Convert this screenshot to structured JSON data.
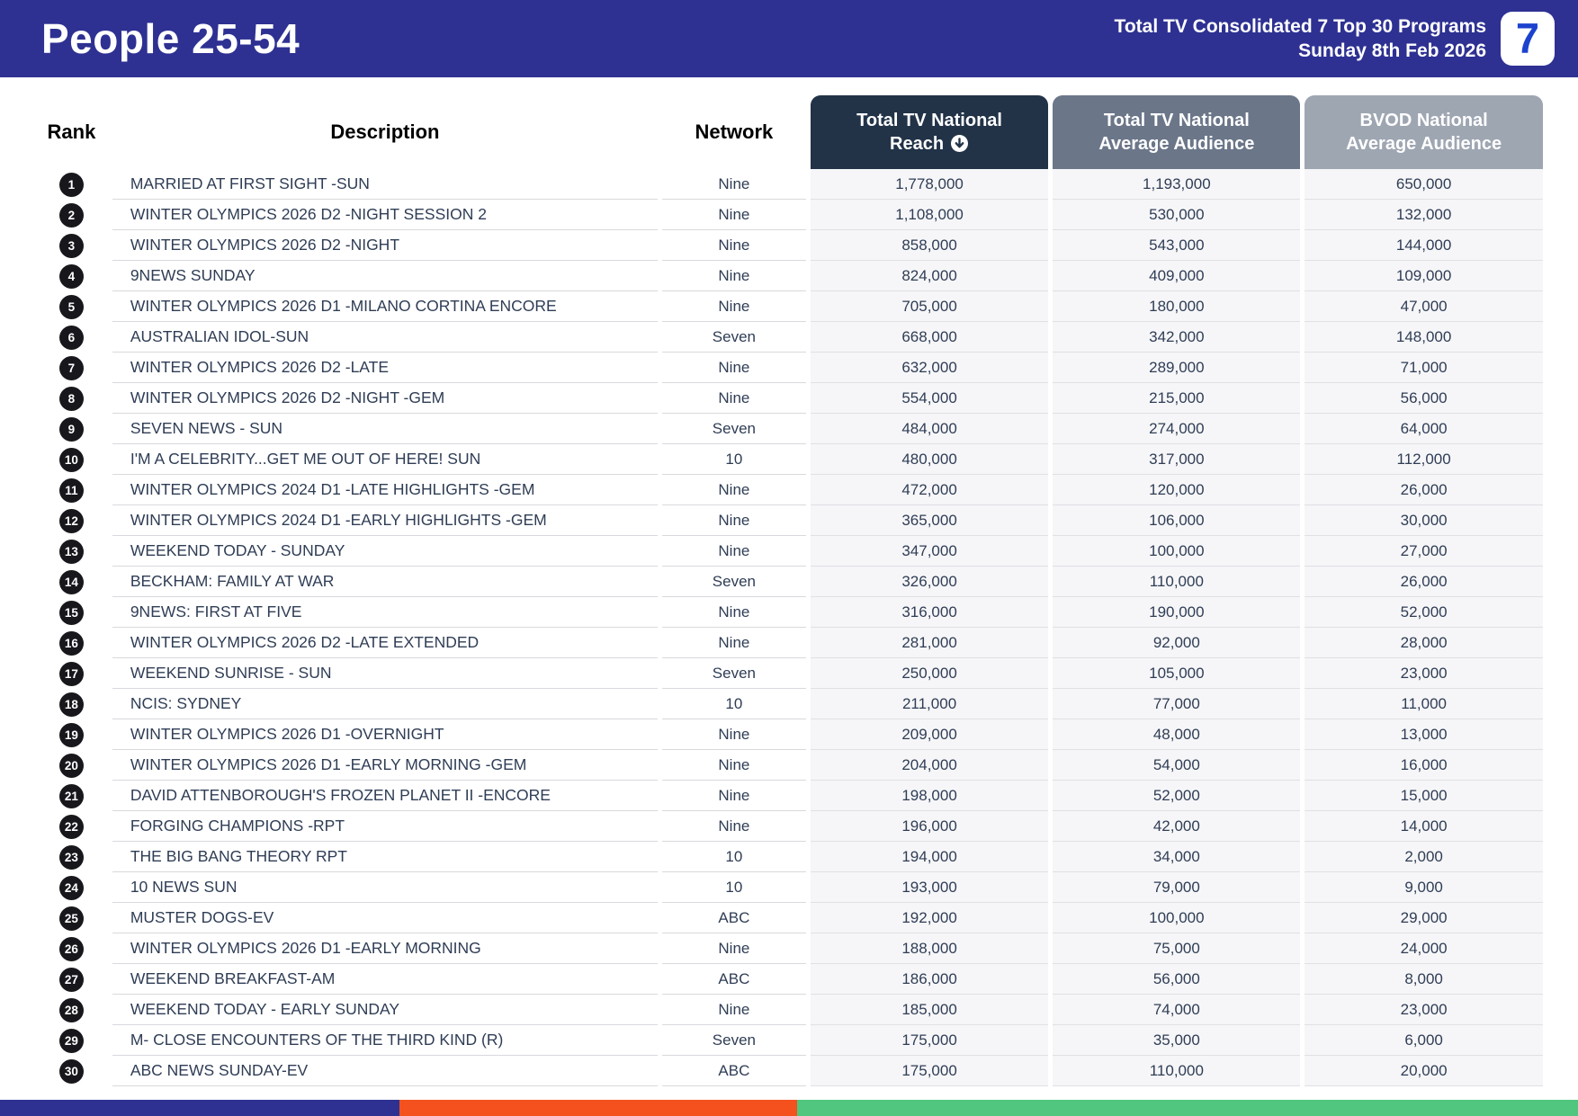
{
  "header": {
    "title": "People 25-54",
    "subtitle_line1": "Total TV Consolidated 7 Top 30 Programs",
    "subtitle_line2": "Sunday 8th Feb 2026",
    "logo_text": "7",
    "bg_color": "#2E3192",
    "logo_color": "#1C43CE"
  },
  "table": {
    "columns": {
      "rank": "Rank",
      "description": "Description",
      "network": "Network",
      "reach": {
        "line1": "Total TV National",
        "line2": "Reach"
      },
      "avg_audience": {
        "line1": "Total TV National",
        "line2": "Average Audience"
      },
      "bvod_audience": {
        "line1": "BVOD National",
        "line2": "Average Audience"
      }
    },
    "sort": {
      "column": "reach",
      "direction": "descending",
      "icon": "circle-arrow-down"
    },
    "header_colors": {
      "reach": "#223348",
      "avg_audience": "#6B7689",
      "bvod_audience": "#9EA6B2"
    },
    "rows": [
      {
        "rank": "1",
        "description": "MARRIED AT FIRST SIGHT -SUN",
        "network": "Nine",
        "reach": "1,778,000",
        "avg_audience": "1,193,000",
        "bvod_audience": "650,000"
      },
      {
        "rank": "2",
        "description": "WINTER OLYMPICS 2026 D2 -NIGHT SESSION 2",
        "network": "Nine",
        "reach": "1,108,000",
        "avg_audience": "530,000",
        "bvod_audience": "132,000"
      },
      {
        "rank": "3",
        "description": "WINTER OLYMPICS 2026 D2 -NIGHT",
        "network": "Nine",
        "reach": "858,000",
        "avg_audience": "543,000",
        "bvod_audience": "144,000"
      },
      {
        "rank": "4",
        "description": "9NEWS SUNDAY",
        "network": "Nine",
        "reach": "824,000",
        "avg_audience": "409,000",
        "bvod_audience": "109,000"
      },
      {
        "rank": "5",
        "description": "WINTER OLYMPICS 2026 D1 -MILANO CORTINA ENCORE",
        "network": "Nine",
        "reach": "705,000",
        "avg_audience": "180,000",
        "bvod_audience": "47,000"
      },
      {
        "rank": "6",
        "description": "AUSTRALIAN IDOL-SUN",
        "network": "Seven",
        "reach": "668,000",
        "avg_audience": "342,000",
        "bvod_audience": "148,000"
      },
      {
        "rank": "7",
        "description": "WINTER OLYMPICS 2026 D2 -LATE",
        "network": "Nine",
        "reach": "632,000",
        "avg_audience": "289,000",
        "bvod_audience": "71,000"
      },
      {
        "rank": "8",
        "description": "WINTER OLYMPICS 2026 D2 -NIGHT -GEM",
        "network": "Nine",
        "reach": "554,000",
        "avg_audience": "215,000",
        "bvod_audience": "56,000"
      },
      {
        "rank": "9",
        "description": "SEVEN NEWS - SUN",
        "network": "Seven",
        "reach": "484,000",
        "avg_audience": "274,000",
        "bvod_audience": "64,000"
      },
      {
        "rank": "10",
        "description": "I'M A CELEBRITY...GET ME OUT OF HERE! SUN",
        "network": "10",
        "reach": "480,000",
        "avg_audience": "317,000",
        "bvod_audience": "112,000"
      },
      {
        "rank": "11",
        "description": "WINTER OLYMPICS 2024 D1 -LATE HIGHLIGHTS -GEM",
        "network": "Nine",
        "reach": "472,000",
        "avg_audience": "120,000",
        "bvod_audience": "26,000"
      },
      {
        "rank": "12",
        "description": "WINTER OLYMPICS 2024 D1 -EARLY HIGHLIGHTS -GEM",
        "network": "Nine",
        "reach": "365,000",
        "avg_audience": "106,000",
        "bvod_audience": "30,000"
      },
      {
        "rank": "13",
        "description": "WEEKEND TODAY - SUNDAY",
        "network": "Nine",
        "reach": "347,000",
        "avg_audience": "100,000",
        "bvod_audience": "27,000"
      },
      {
        "rank": "14",
        "description": "BECKHAM: FAMILY AT WAR",
        "network": "Seven",
        "reach": "326,000",
        "avg_audience": "110,000",
        "bvod_audience": "26,000"
      },
      {
        "rank": "15",
        "description": "9NEWS: FIRST AT FIVE",
        "network": "Nine",
        "reach": "316,000",
        "avg_audience": "190,000",
        "bvod_audience": "52,000"
      },
      {
        "rank": "16",
        "description": "WINTER OLYMPICS 2026 D2 -LATE EXTENDED",
        "network": "Nine",
        "reach": "281,000",
        "avg_audience": "92,000",
        "bvod_audience": "28,000"
      },
      {
        "rank": "17",
        "description": "WEEKEND SUNRISE - SUN",
        "network": "Seven",
        "reach": "250,000",
        "avg_audience": "105,000",
        "bvod_audience": "23,000"
      },
      {
        "rank": "18",
        "description": "NCIS: SYDNEY",
        "network": "10",
        "reach": "211,000",
        "avg_audience": "77,000",
        "bvod_audience": "11,000"
      },
      {
        "rank": "19",
        "description": "WINTER OLYMPICS 2026 D1 -OVERNIGHT",
        "network": "Nine",
        "reach": "209,000",
        "avg_audience": "48,000",
        "bvod_audience": "13,000"
      },
      {
        "rank": "20",
        "description": "WINTER OLYMPICS 2026 D1 -EARLY MORNING -GEM",
        "network": "Nine",
        "reach": "204,000",
        "avg_audience": "54,000",
        "bvod_audience": "16,000"
      },
      {
        "rank": "21",
        "description": "DAVID ATTENBOROUGH'S FROZEN PLANET II -ENCORE",
        "network": "Nine",
        "reach": "198,000",
        "avg_audience": "52,000",
        "bvod_audience": "15,000"
      },
      {
        "rank": "22",
        "description": "FORGING CHAMPIONS -RPT",
        "network": "Nine",
        "reach": "196,000",
        "avg_audience": "42,000",
        "bvod_audience": "14,000"
      },
      {
        "rank": "23",
        "description": "THE BIG BANG THEORY RPT",
        "network": "10",
        "reach": "194,000",
        "avg_audience": "34,000",
        "bvod_audience": "2,000"
      },
      {
        "rank": "24",
        "description": "10 NEWS SUN",
        "network": "10",
        "reach": "193,000",
        "avg_audience": "79,000",
        "bvod_audience": "9,000"
      },
      {
        "rank": "25",
        "description": "MUSTER DOGS-EV",
        "network": "ABC",
        "reach": "192,000",
        "avg_audience": "100,000",
        "bvod_audience": "29,000"
      },
      {
        "rank": "26",
        "description": "WINTER OLYMPICS 2026 D1 -EARLY MORNING",
        "network": "Nine",
        "reach": "188,000",
        "avg_audience": "75,000",
        "bvod_audience": "24,000"
      },
      {
        "rank": "27",
        "description": "WEEKEND BREAKFAST-AM",
        "network": "ABC",
        "reach": "186,000",
        "avg_audience": "56,000",
        "bvod_audience": "8,000"
      },
      {
        "rank": "28",
        "description": "WEEKEND TODAY - EARLY SUNDAY",
        "network": "Nine",
        "reach": "185,000",
        "avg_audience": "74,000",
        "bvod_audience": "23,000"
      },
      {
        "rank": "29",
        "description": "M- CLOSE ENCOUNTERS OF THE THIRD KIND (R)",
        "network": "Seven",
        "reach": "175,000",
        "avg_audience": "35,000",
        "bvod_audience": "6,000"
      },
      {
        "rank": "30",
        "description": "ABC NEWS SUNDAY-EV",
        "network": "ABC",
        "reach": "175,000",
        "avg_audience": "110,000",
        "bvod_audience": "20,000"
      }
    ]
  },
  "footer_bar": {
    "segments": [
      {
        "color": "#2E3192",
        "width_pct": 25.3
      },
      {
        "color": "#F4511E",
        "width_pct": 25.2
      },
      {
        "color": "#50C67E",
        "width_pct": 49.5
      }
    ]
  }
}
